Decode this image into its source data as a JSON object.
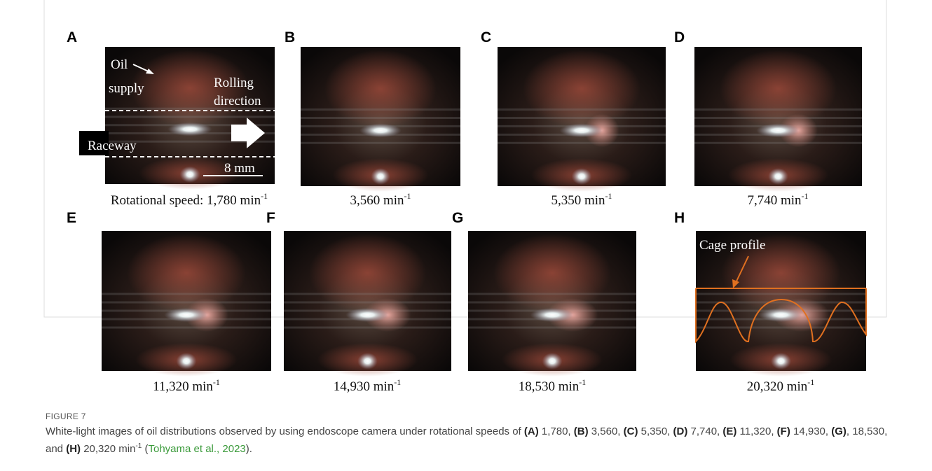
{
  "figure": {
    "panels": [
      {
        "label": "A",
        "caption": "Rotational speed: 1,780 min",
        "exponent": "-1"
      },
      {
        "label": "B",
        "caption": "3,560 min",
        "exponent": "-1"
      },
      {
        "label": "C",
        "caption": "5,350 min",
        "exponent": "-1"
      },
      {
        "label": "D",
        "caption": "7,740 min",
        "exponent": "-1"
      },
      {
        "label": "E",
        "caption": "11,320 min",
        "exponent": "-1"
      },
      {
        "label": "F",
        "caption": "14,930 min",
        "exponent": "-1"
      },
      {
        "label": "G",
        "caption": "18,530 min",
        "exponent": "-1"
      },
      {
        "label": "H",
        "caption": "20,320 min",
        "exponent": "-1"
      }
    ],
    "annotations": {
      "oil": "Oil",
      "supply": "supply",
      "rolling": "Rolling",
      "direction": "direction",
      "raceway": "Raceway",
      "scale": "8 mm",
      "cage": "Cage profile"
    },
    "figure_label": "FIGURE 7",
    "caption": [
      "White-light images of oil distributions observed by using endoscope camera under rotational speeds of ",
      "(A)",
      " 1,780, ",
      "(B)",
      " 3,560, ",
      "(C)",
      " 5,350, ",
      "(D)",
      " 7,740, ",
      "(E)",
      " 11,320, ",
      "(F)",
      " 14,930, ",
      "(G)",
      ", 18,530, and ",
      "(H)",
      " 20,320 min",
      "-1",
      " (",
      "Tohyama et al., 2023",
      ")."
    ]
  }
}
